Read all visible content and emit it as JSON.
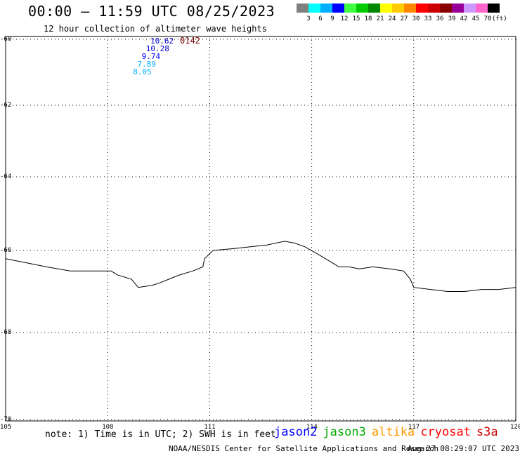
{
  "header": {
    "title": "00:00 – 11:59 UTC 08/25/2023",
    "subtitle": "12 hour collection of altimeter wave heights"
  },
  "legend": {
    "colors": [
      "#808080",
      "#00ffff",
      "#00b0ff",
      "#0000ff",
      "#40ff40",
      "#00cc00",
      "#008800",
      "#ffff00",
      "#ffcc00",
      "#ff8800",
      "#ff0000",
      "#cc0000",
      "#880000",
      "#990099",
      "#cc99ff",
      "#ff66cc",
      "#000000"
    ],
    "labels": [
      "3",
      "6",
      "9",
      "12",
      "15",
      "18",
      "21",
      "24",
      "27",
      "30",
      "33",
      "36",
      "39",
      "42",
      "45",
      "70"
    ],
    "unit": "(ft)"
  },
  "map": {
    "lat_labels": [
      "-60",
      "-62",
      "-64",
      "-66",
      "-68",
      "-70"
    ],
    "lon_labels": [
      "105",
      "108",
      "111",
      "114",
      "117",
      "120"
    ],
    "lat_values": [
      -60,
      -62,
      -64,
      -66,
      -68,
      -70
    ],
    "lon_values": [
      105,
      108,
      111,
      114,
      117,
      120
    ],
    "coastline": [
      [
        105,
        -66.2
      ],
      [
        105.6,
        -66.3
      ],
      [
        106.2,
        -66.4
      ],
      [
        106.9,
        -66.5
      ],
      [
        107.5,
        -66.5
      ],
      [
        108.1,
        -66.5
      ],
      [
        108.3,
        -66.6
      ],
      [
        108.7,
        -66.7
      ],
      [
        108.9,
        -66.9
      ],
      [
        109.3,
        -66.85
      ],
      [
        109.5,
        -66.8
      ],
      [
        109.8,
        -66.7
      ],
      [
        110.1,
        -66.6
      ],
      [
        110.5,
        -66.5
      ],
      [
        110.8,
        -66.4
      ],
      [
        110.85,
        -66.2
      ],
      [
        111.1,
        -66.0
      ],
      [
        111.7,
        -65.95
      ],
      [
        112.2,
        -65.9
      ],
      [
        112.7,
        -65.85
      ],
      [
        113.2,
        -65.75
      ],
      [
        113.5,
        -65.8
      ],
      [
        113.8,
        -65.9
      ],
      [
        114.2,
        -66.1
      ],
      [
        114.5,
        -66.25
      ],
      [
        114.8,
        -66.4
      ],
      [
        115.1,
        -66.4
      ],
      [
        115.4,
        -66.45
      ],
      [
        115.8,
        -66.4
      ],
      [
        116.3,
        -66.45
      ],
      [
        116.7,
        -66.5
      ],
      [
        116.9,
        -66.7
      ],
      [
        117.0,
        -66.9
      ],
      [
        117.5,
        -66.95
      ],
      [
        118.0,
        -67.0
      ],
      [
        118.5,
        -67.0
      ],
      [
        119.0,
        -66.95
      ],
      [
        119.5,
        -66.95
      ],
      [
        120.0,
        -66.9
      ]
    ],
    "pass_points": [
      {
        "value": "10.62",
        "color": "#0000cc"
      },
      {
        "value": "10.28",
        "color": "#0000cc"
      },
      {
        "value": "9.74",
        "color": "#0000ff"
      },
      {
        "value": "7.89",
        "color": "#00b0ff"
      },
      {
        "value": "8.05",
        "color": "#00b0ff"
      }
    ],
    "pass_id": "0142"
  },
  "footer": {
    "note": "note: 1) Time is in UTC; 2) SWH is in feet",
    "satellites": [
      {
        "name": "jason2",
        "color": "#0000ff"
      },
      {
        "name": "jason3",
        "color": "#00aa00"
      },
      {
        "name": "altika",
        "color": "#ff9900"
      },
      {
        "name": "cryosat",
        "color": "#ff0000"
      },
      {
        "name": "s3a",
        "color": "#cc0000"
      }
    ],
    "credit": "NOAA/NESDIS Center for Satellite Applications and Research",
    "timestamp": "Aug 27 08:29:07 UTC 2023"
  }
}
